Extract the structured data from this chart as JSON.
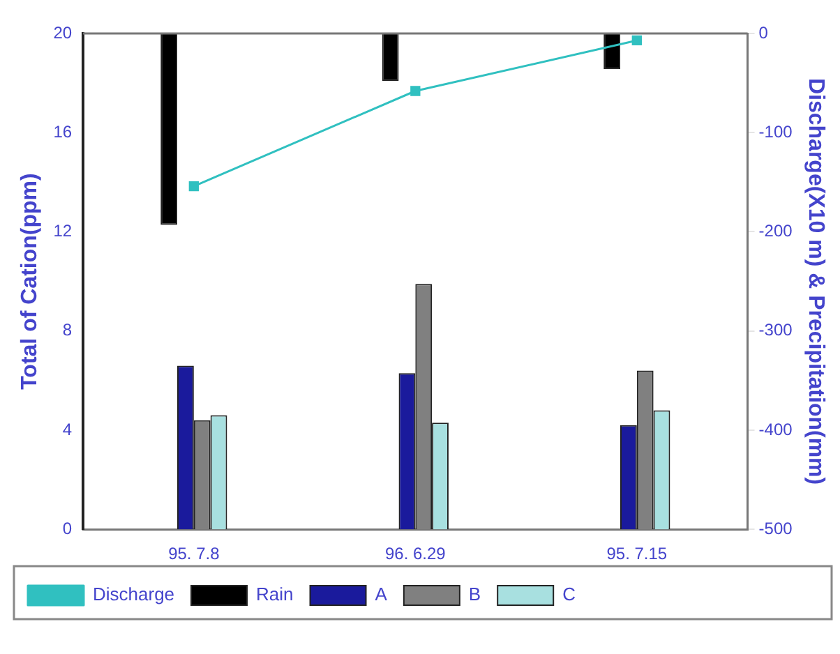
{
  "chart_data": {
    "type": "bar",
    "ylabel": "Total of Cation(ppm)",
    "y2label": "Discharge(X10 m) & Precipitation(mm)",
    "categories": [
      "95. 7.8",
      "96. 6.29",
      "95. 7.15"
    ],
    "series": [
      {
        "name": "Discharge",
        "type": "line",
        "axis": "y2",
        "color": "#30c0c0",
        "values": [
          -154,
          -58,
          -7
        ]
      },
      {
        "name": "Rain",
        "axis": "y2",
        "color": "#000000",
        "values": [
          -193,
          -48,
          -36
        ]
      },
      {
        "name": "A",
        "color": "#1a1a9c",
        "values": [
          6.6,
          6.3,
          4.2
        ]
      },
      {
        "name": "B",
        "color": "#808080",
        "values": [
          4.4,
          9.9,
          6.4
        ]
      },
      {
        "name": "C",
        "color": "#a8e0e0",
        "values": [
          4.6,
          4.3,
          4.8
        ]
      }
    ],
    "ylim": [
      0,
      20
    ],
    "yticks": [
      0,
      4,
      8,
      12,
      16,
      20
    ],
    "y2lim": [
      -500,
      0
    ],
    "y2ticks": [
      -500,
      -400,
      -300,
      -200,
      -100,
      0
    ],
    "grid": false,
    "legend": "bottom",
    "marker": "square",
    "line_style": "solid"
  }
}
